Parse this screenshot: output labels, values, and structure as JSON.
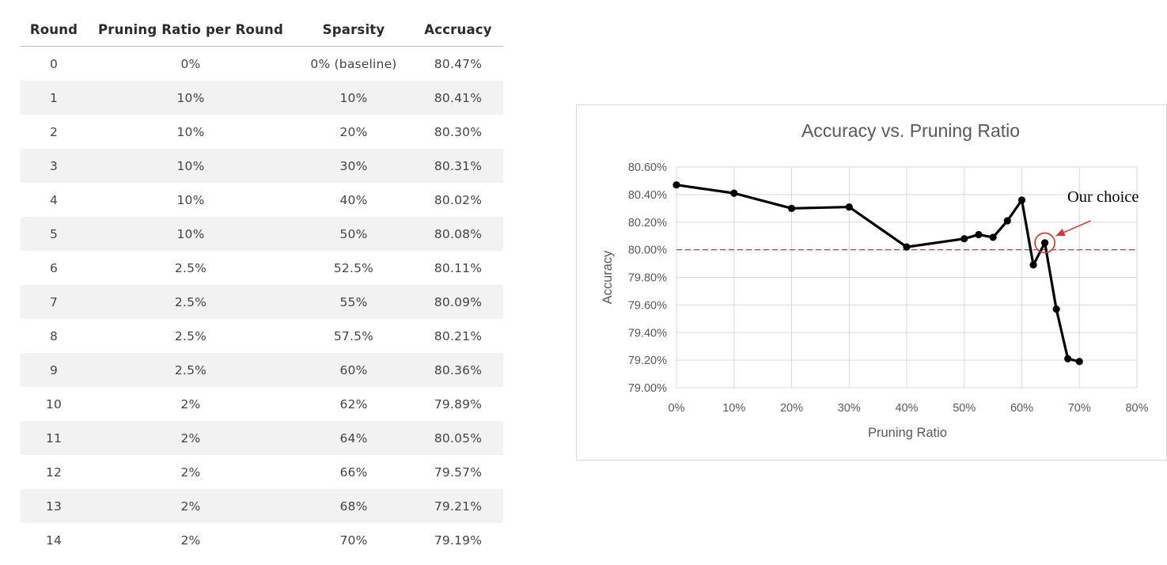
{
  "table": {
    "headers": [
      "Round",
      "Pruning Ratio per Round",
      "Sparsity",
      "Accruacy"
    ],
    "rows": [
      [
        "0",
        "0%",
        "0% (baseline)",
        "80.47%"
      ],
      [
        "1",
        "10%",
        "10%",
        "80.41%"
      ],
      [
        "2",
        "10%",
        "20%",
        "80.30%"
      ],
      [
        "3",
        "10%",
        "30%",
        "80.31%"
      ],
      [
        "4",
        "10%",
        "40%",
        "80.02%"
      ],
      [
        "5",
        "10%",
        "50%",
        "80.08%"
      ],
      [
        "6",
        "2.5%",
        "52.5%",
        "80.11%"
      ],
      [
        "7",
        "2.5%",
        "55%",
        "80.09%"
      ],
      [
        "8",
        "2.5%",
        "57.5%",
        "80.21%"
      ],
      [
        "9",
        "2.5%",
        "60%",
        "80.36%"
      ],
      [
        "10",
        "2%",
        "62%",
        "79.89%"
      ],
      [
        "11",
        "2%",
        "64%",
        "80.05%"
      ],
      [
        "12",
        "2%",
        "66%",
        "79.57%"
      ],
      [
        "13",
        "2%",
        "68%",
        "79.21%"
      ],
      [
        "14",
        "2%",
        "70%",
        "79.19%"
      ]
    ]
  },
  "chart_data": {
    "type": "line",
    "title": "Accuracy vs. Pruning Ratio",
    "xlabel": "Pruning Ratio",
    "ylabel": "Accuracy",
    "xlim": [
      0,
      80
    ],
    "ylim": [
      79.0,
      80.6
    ],
    "x_ticks": [
      "0%",
      "10%",
      "20%",
      "30%",
      "40%",
      "50%",
      "60%",
      "70%",
      "80%"
    ],
    "y_ticks": [
      "79.00%",
      "79.20%",
      "79.40%",
      "79.60%",
      "79.80%",
      "80.00%",
      "80.20%",
      "80.40%",
      "80.60%"
    ],
    "grid": true,
    "series": [
      {
        "x": [
          0,
          10,
          20,
          30,
          40,
          50,
          52.5,
          55,
          57.5,
          60,
          62,
          64,
          66,
          68,
          70
        ],
        "y": [
          80.47,
          80.41,
          80.3,
          80.31,
          80.02,
          80.08,
          80.11,
          80.09,
          80.21,
          80.36,
          79.89,
          80.05,
          79.57,
          79.21,
          79.19
        ],
        "color": "#000000"
      }
    ],
    "reference_line": {
      "y": 80.0,
      "color": "#e03030",
      "style": "dashed"
    },
    "annotation": {
      "text": "Our choice",
      "x": 64,
      "y": 80.05,
      "color": "#e03030"
    }
  }
}
